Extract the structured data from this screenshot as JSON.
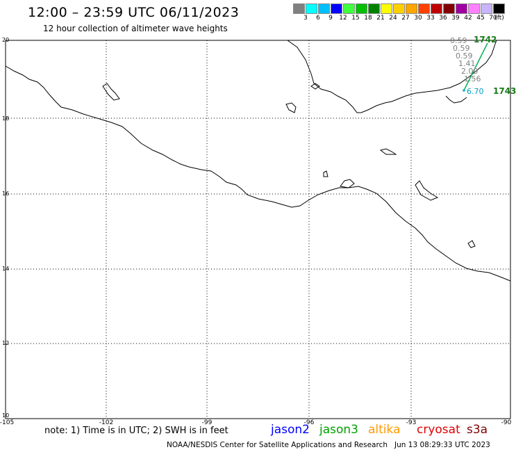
{
  "header": {
    "title": "12:00 – 23:59 UTC 06/11/2023",
    "subtitle": "12 hour collection of altimeter wave heights"
  },
  "scale": {
    "colors": [
      "#808080",
      "#00ffff",
      "#00bfff",
      "#0000ff",
      "#40ff40",
      "#00c000",
      "#008000",
      "#ffff00",
      "#ffd000",
      "#ffa500",
      "#ff4000",
      "#c00000",
      "#800000",
      "#a000a0",
      "#ff80ff",
      "#c8b4ff",
      "#000000"
    ],
    "labels": [
      "3",
      "6",
      "9",
      "12",
      "15",
      "18",
      "21",
      "24",
      "27",
      "30",
      "33",
      "36",
      "39",
      "42",
      "45",
      "70",
      "(ft)"
    ]
  },
  "map": {
    "lat_labels": [
      "20",
      "18",
      "16",
      "14",
      "12",
      "10"
    ],
    "lon_labels": [
      "-105",
      "-102",
      "-99",
      "-96",
      "-93",
      "-90"
    ]
  },
  "observations": {
    "values": [
      "0.59",
      "0.59",
      "0.59",
      "1.41",
      "2.09",
      "1.56"
    ],
    "value_color": "#808080",
    "cyan_value": "6.70",
    "cyan_color": "#00a0c0",
    "track_top": "1742",
    "track_bottom": "1743"
  },
  "footer": {
    "note": "note: 1) Time is in UTC; 2) SWH is in feet",
    "satellites": [
      {
        "name": "jason2",
        "color": "#0000ff"
      },
      {
        "name": "jason3",
        "color": "#00a000"
      },
      {
        "name": "altika",
        "color": "#ff9900"
      },
      {
        "name": "cryosat",
        "color": "#e00000"
      },
      {
        "name": "s3a",
        "color": "#800000"
      }
    ],
    "credit": "NOAA/NESDIS Center for Satellite Applications and Research",
    "timestamp": "Jun 13 08:29:33 UTC 2023"
  }
}
